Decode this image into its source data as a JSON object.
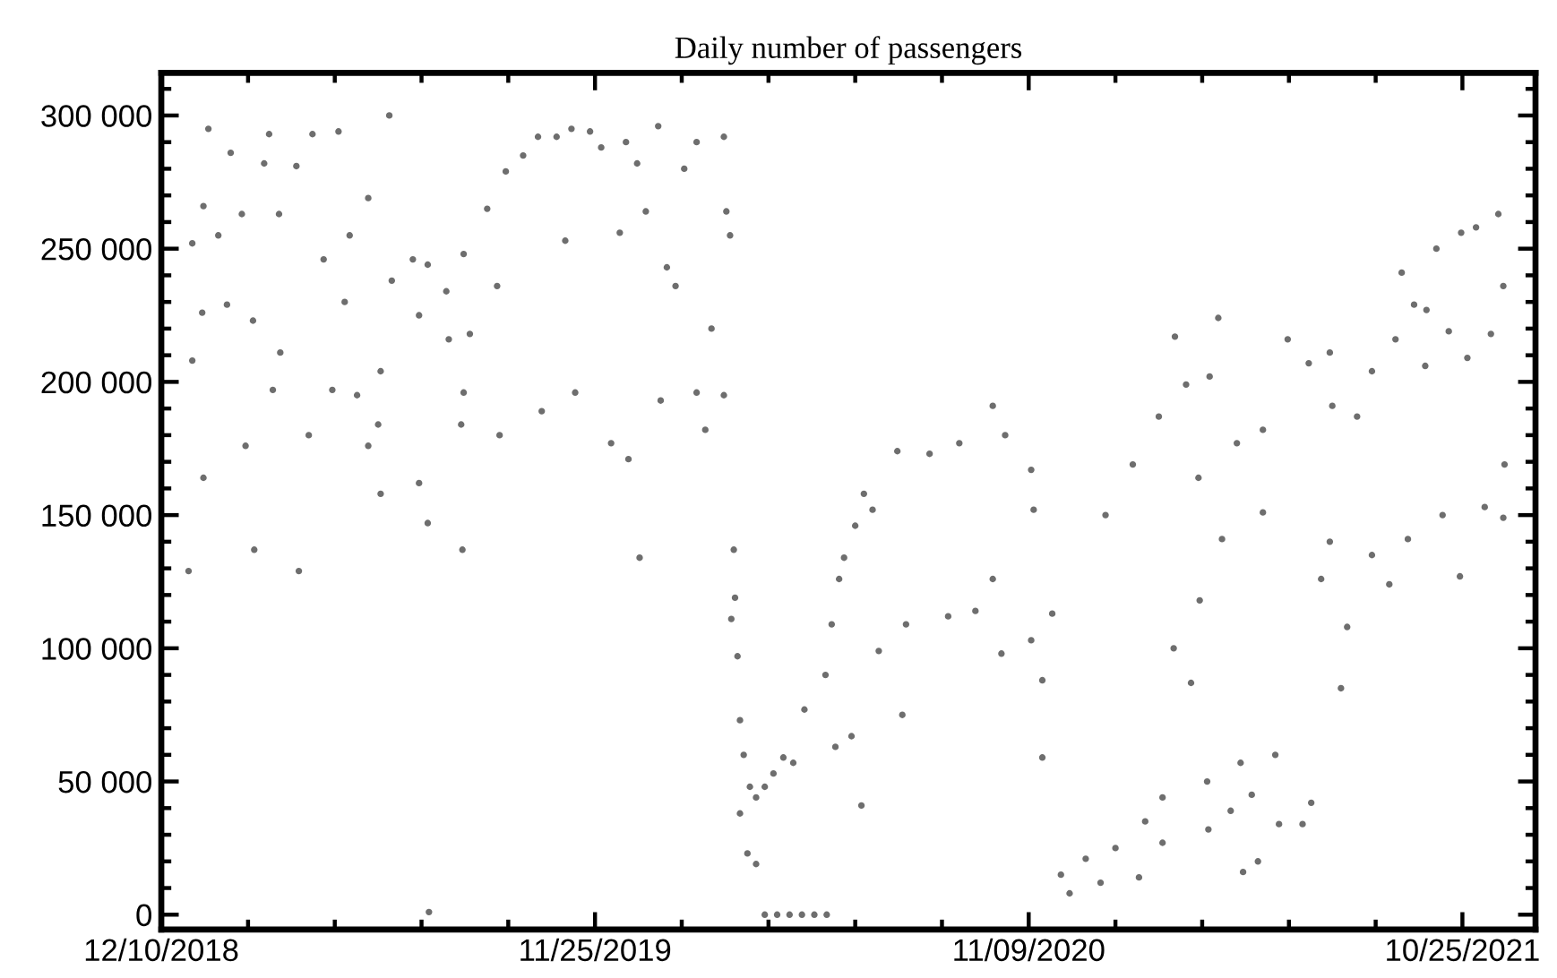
{
  "chart_data": {
    "type": "scatter",
    "title": "Daily number of passengers",
    "xlim": [
      "2018-12-10",
      "2021-12-23"
    ],
    "ylim": [
      -5600,
      316000
    ],
    "xticks": [
      {
        "value": "2018-12-10",
        "label": "12/10/2018"
      },
      {
        "value": "2019-11-25",
        "label": "11/25/2019"
      },
      {
        "value": "2020-11-09",
        "label": "11/09/2020"
      },
      {
        "value": "2021-10-25",
        "label": "10/25/2021"
      }
    ],
    "yticks": [
      0,
      {
        "value": 50000,
        "label": "50 000"
      },
      {
        "value": 100000,
        "label": "100 000"
      },
      {
        "value": 150000,
        "label": "150 000"
      },
      {
        "value": 200000,
        "label": "200 000"
      },
      {
        "value": 250000,
        "label": "250 000"
      },
      {
        "value": 300000,
        "label": "300 000"
      }
    ],
    "grid": false,
    "marker": "circle",
    "series": [
      {
        "color": "#6e6e6e",
        "x": [
          "2019-01-04",
          "2019-01-17",
          "2019-01-04",
          "2019-01-12",
          "2019-01-13",
          "2019-01-25",
          "2019-02-01",
          "2019-02-04",
          "2019-02-13",
          "2019-02-22",
          "2019-03-03",
          "2019-03-07",
          "2019-03-15",
          "2019-03-16",
          "2019-03-29",
          "2019-04-11",
          "2019-04-20",
          "2019-05-02",
          "2019-05-07",
          "2019-05-11",
          "2019-05-26",
          "2019-05-17",
          "2019-06-05",
          "2019-06-12",
          "2019-06-14",
          "2019-07-01",
          "2019-07-06",
          "2019-07-13",
          "2019-07-28",
          "2019-07-30",
          "2019-08-11",
          "2019-08-16",
          "2019-08-30",
          "2019-09-07",
          "2019-09-14",
          "2019-09-28",
          "2019-10-10",
          "2019-10-25",
          "2019-11-06",
          "2019-11-01",
          "2019-11-21",
          "2019-11-30",
          "2019-12-20",
          "2019-12-15",
          "2019-12-29",
          "2020-01-05",
          "2020-01-15",
          "2020-01-22",
          "2020-01-29",
          "2020-02-05",
          "2020-02-15",
          "2020-02-27",
          "2020-03-08",
          "2020-03-10",
          "2020-03-13",
          "2019-03-10",
          "2019-02-16",
          "2019-01-13",
          "2019-04-08",
          "2019-04-27",
          "2019-05-26",
          "2019-06-03",
          "2019-06-05",
          "2019-07-06",
          "2019-08-11",
          "2019-08-09",
          "2019-09-09",
          "2019-10-13",
          "2019-11-09",
          "2019-12-08",
          "2019-12-22",
          "2020-01-17",
          "2020-02-15",
          "2020-03-08",
          "2020-02-22",
          "2019-01-01",
          "2019-02-23",
          "2019-03-31",
          "2019-07-13",
          "2019-08-10",
          "2019-07-14",
          "2019-12-31",
          "2020-03-16",
          "2020-03-17",
          "2020-03-14",
          "2020-03-19",
          "2020-03-21",
          "2020-03-24",
          "2020-03-21",
          "2020-03-27",
          "2020-04-03",
          "2020-03-29",
          "2020-04-03",
          "2020-04-10",
          "2020-04-17",
          "2020-04-25",
          "2020-04-10",
          "2020-04-20",
          "2020-04-30",
          "2020-05-10",
          "2020-05-20",
          "2020-05-30",
          "2020-05-03",
          "2020-05-12",
          "2020-05-29",
          "2020-06-03",
          "2020-06-09",
          "2020-06-13",
          "2020-06-22",
          "2020-07-06",
          "2020-06-06",
          "2020-06-27",
          "2020-06-19",
          "2020-07-11",
          "2020-07-30",
          "2020-08-02",
          "2020-09-05",
          "2020-09-27",
          "2020-10-11",
          "2020-10-18",
          "2020-11-11",
          "2020-11-20",
          "2020-11-20",
          "2020-11-28",
          "2020-12-05",
          "2020-12-12",
          "2020-12-25",
          "2021-01-06",
          "2021-01-18",
          "2021-02-06",
          "2021-02-11",
          "2021-02-25",
          "2021-02-25",
          "2021-03-06",
          "2021-03-20",
          "2021-03-27",
          "2021-04-02",
          "2021-04-03",
          "2021-04-21",
          "2021-04-29",
          "2021-05-01",
          "2021-05-13",
          "2021-05-08",
          "2021-05-27",
          "2021-05-30",
          "2021-06-18",
          "2021-06-25",
          "2021-04-14",
          "2021-05-17",
          "2021-07-03",
          "2021-07-19",
          "2021-07-10",
          "2021-07-24",
          "2021-08-13",
          "2021-08-27",
          "2021-09-11",
          "2021-10-09",
          "2021-10-23",
          "2021-11-12",
          "2021-11-27",
          "2021-11-28",
          "2020-06-29",
          "2020-07-26",
          "2020-08-21",
          "2020-09-14",
          "2020-10-11",
          "2020-10-21",
          "2020-11-11",
          "2020-11-13",
          "2021-01-10",
          "2021-02-01",
          "2021-02-22",
          "2021-03-07",
          "2021-03-16",
          "2021-04-04",
          "2021-04-11",
          "2021-03-26",
          "2021-04-26",
          "2021-05-17",
          "2021-06-06",
          "2021-06-23",
          "2021-07-10",
          "2021-07-12",
          "2021-08-01",
          "2021-08-13",
          "2021-09-01",
          "2021-09-06",
          "2021-09-16",
          "2021-09-25",
          "2021-10-04",
          "2021-10-24",
          "2021-11-05",
          "2021-11-23",
          "2021-11-27",
          "2021-10-29",
          "2021-11-17",
          "2021-10-14",
          "2021-09-26"
        ],
        "values": [
          252000,
          295000,
          208000,
          226000,
          266000,
          255000,
          229000,
          286000,
          263000,
          223000,
          282000,
          293000,
          263000,
          211000,
          281000,
          293000,
          246000,
          294000,
          230000,
          255000,
          269000,
          195000,
          204000,
          300000,
          238000,
          246000,
          225000,
          244000,
          234000,
          216000,
          248000,
          218000,
          265000,
          236000,
          279000,
          285000,
          292000,
          292000,
          295000,
          253000,
          294000,
          288000,
          290000,
          256000,
          282000,
          264000,
          296000,
          243000,
          236000,
          280000,
          290000,
          220000,
          292000,
          264000,
          255000,
          197000,
          176000,
          164000,
          180000,
          197000,
          176000,
          184000,
          158000,
          162000,
          196000,
          184000,
          180000,
          189000,
          196000,
          177000,
          171000,
          193000,
          196000,
          195000,
          182000,
          129000,
          137000,
          129000,
          147000,
          137000,
          1000,
          134000,
          137000,
          119000,
          111000,
          97000,
          73000,
          60000,
          38000,
          23000,
          19000,
          48000,
          44000,
          48000,
          53000,
          59000,
          0,
          0,
          0,
          0,
          0,
          0,
          57000,
          77000,
          90000,
          109000,
          126000,
          134000,
          146000,
          152000,
          63000,
          41000,
          67000,
          99000,
          75000,
          109000,
          112000,
          114000,
          126000,
          98000,
          103000,
          59000,
          88000,
          113000,
          15000,
          8000,
          21000,
          12000,
          25000,
          14000,
          35000,
          44000,
          27000,
          100000,
          87000,
          118000,
          50000,
          32000,
          39000,
          57000,
          16000,
          20000,
          45000,
          60000,
          34000,
          34000,
          42000,
          141000,
          151000,
          126000,
          85000,
          140000,
          108000,
          135000,
          124000,
          141000,
          150000,
          127000,
          153000,
          149000,
          169000,
          158000,
          174000,
          173000,
          177000,
          191000,
          180000,
          167000,
          152000,
          150000,
          169000,
          187000,
          217000,
          199000,
          202000,
          224000,
          164000,
          177000,
          182000,
          216000,
          207000,
          211000,
          191000,
          187000,
          204000,
          216000,
          241000,
          229000,
          206000,
          250000,
          256000,
          258000,
          263000,
          236000,
          209000,
          218000,
          219000,
          227000
        ]
      }
    ]
  }
}
